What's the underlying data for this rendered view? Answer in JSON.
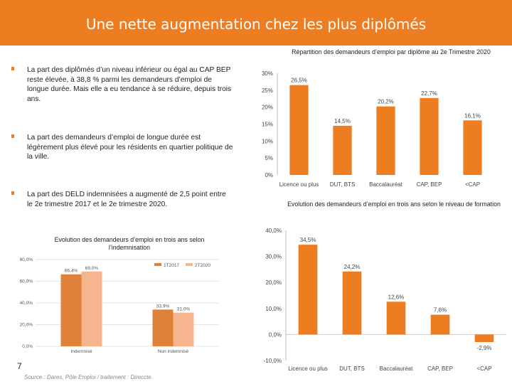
{
  "header": {
    "title": "Une nette augmentation chez les plus diplômés",
    "color": "#ee7d22"
  },
  "bullets": [
    "La part des diplômés d’un niveau inférieur ou égal au CAP BEP reste élevée, à 38,8 % parmi les demandeurs d’emploi de longue durée. Mais elle a eu tendance à se réduire, depuis trois ans.",
    "La part des demandeurs d’emploi de longue durée est légèrement plus élevé pour les résidents en quartier politique de la ville.",
    "La part des DELD indemnisées a augmenté de 2,5 point entre le 2e trimestre 2017 et le 2e trimestre 2020."
  ],
  "footer": {
    "page_number": "7",
    "source": "Source : Dares, Pôle Emploi / traitement : Direccte"
  },
  "chart_data": [
    {
      "type": "bar",
      "title": "Répartition des demandeurs d’emploi par diplôme au 2e Trimestre 2020",
      "categories": [
        "Licence ou plus",
        "DUT, BTS",
        "Baccalauréat",
        "CAP, BEP",
        "<CAP"
      ],
      "values": [
        26.5,
        14.5,
        20.2,
        22.7,
        16.1
      ],
      "value_labels": [
        "26,5%",
        "14,5%",
        "20,2%",
        "22,7%",
        "16,1%"
      ],
      "ylim": [
        0,
        30
      ],
      "yticks": [
        "0%",
        "5%",
        "10%",
        "15%",
        "20%",
        "25%",
        "30%"
      ],
      "color": "#ee7d22",
      "grid": false,
      "xlabel": "",
      "ylabel": ""
    },
    {
      "type": "bar",
      "title": "Evolution des demandeurs d’emploi en trois ans selon le niveau de formation",
      "categories": [
        "Licence ou plus",
        "DUT, BTS",
        "Baccalauréat",
        "CAP, BEP",
        "<CAP"
      ],
      "values": [
        34.5,
        24.2,
        12.6,
        7.6,
        -2.9
      ],
      "value_labels": [
        "34,5%",
        "24,2%",
        "12,6%",
        "7,6%",
        "-2,9%"
      ],
      "ylim": [
        -10,
        40
      ],
      "yticks": [
        "-10,0%",
        "0,0%",
        "10,0%",
        "20,0%",
        "30,0%",
        "40,0%"
      ],
      "color": "#ee7d22",
      "grid": false,
      "xlabel": "",
      "ylabel": ""
    },
    {
      "type": "bar",
      "title": "Evolution des demandeurs d’emploi en trois ans selon l’indemnisation",
      "categories": [
        "Indemnisé",
        "Non indemnisé"
      ],
      "series": [
        {
          "name": "1T2017",
          "values": [
            66.4,
            33.9
          ],
          "value_labels": [
            "66,4%",
            "33,9%"
          ],
          "color": "#e0813a"
        },
        {
          "name": "2T2020",
          "values": [
            69.0,
            31.0
          ],
          "value_labels": [
            "69,0%",
            "31,0%"
          ],
          "color": "#f6b48f"
        }
      ],
      "ylim": [
        0,
        80
      ],
      "yticks": [
        "0,0%",
        "20,0%",
        "40,0%",
        "60,0%",
        "80,0%"
      ],
      "legend": "top-right",
      "grid": true,
      "xlabel": "",
      "ylabel": ""
    }
  ]
}
